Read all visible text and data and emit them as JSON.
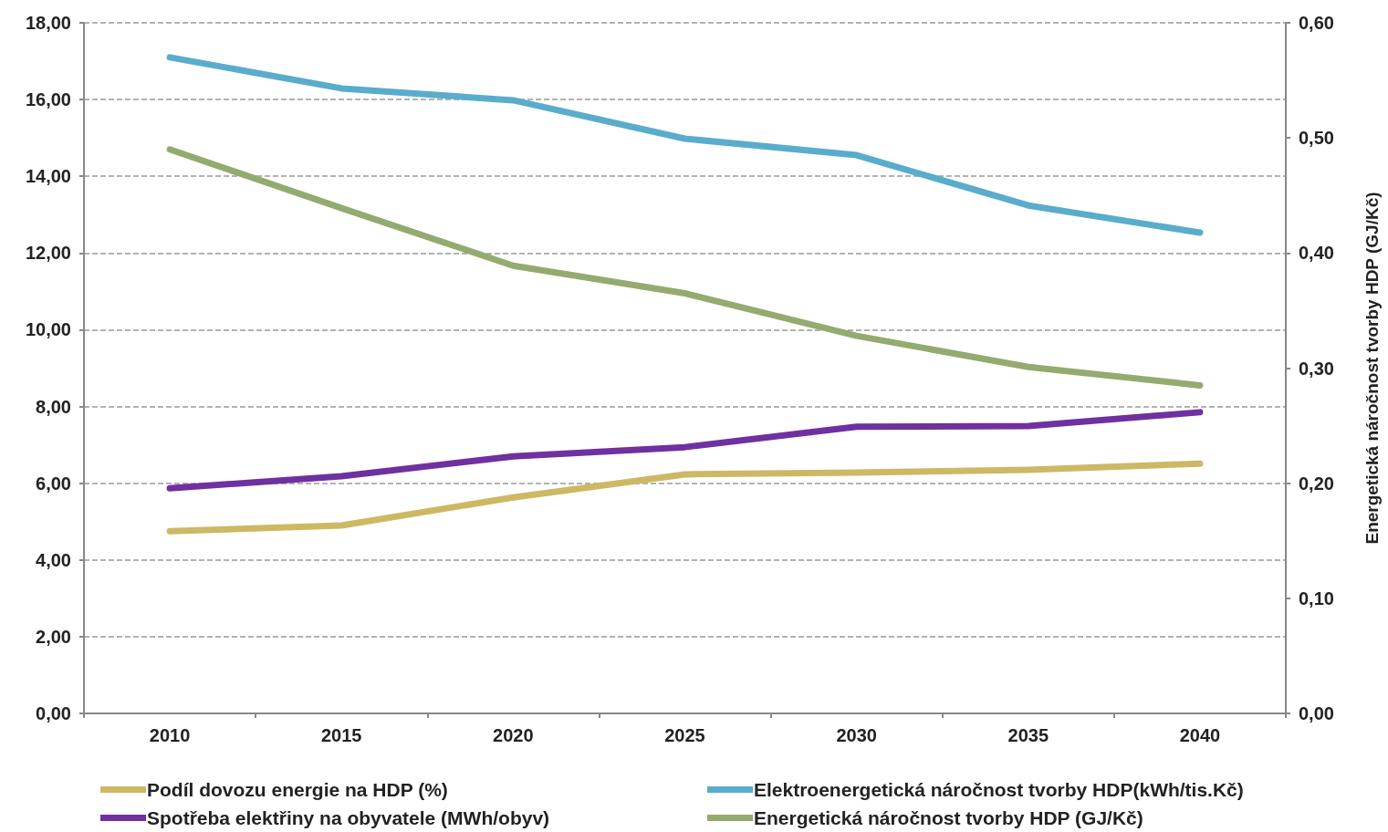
{
  "chart_data": {
    "type": "line",
    "y2label": "Energetická náročnost tvorby HDP (GJ/Kč)",
    "categories": [
      "2010",
      "2015",
      "2020",
      "2025",
      "2030",
      "2035",
      "2040"
    ],
    "series": [
      {
        "name": "Podíl dovozu energie na HDP (%)",
        "color": "#cdb864",
        "values": [
          4.75,
          4.9,
          5.63,
          6.23,
          6.28,
          6.35,
          6.51
        ]
      },
      {
        "name": "Elektroenergetická náročnost tvorby HDP(kWh/tis.Kč)",
        "color": "#5aaccc",
        "values": [
          17.1,
          16.29,
          15.98,
          14.98,
          14.55,
          13.24,
          12.53
        ]
      },
      {
        "name": "Spotřeba elektřiny na obyvatele (MWh/obyv)",
        "color": "#7030a0",
        "values": [
          5.87,
          6.18,
          6.7,
          6.94,
          7.47,
          7.49,
          7.85
        ]
      },
      {
        "name": "Energetická náročnost tvorby HDP (GJ/Kč)",
        "color": "#93ab6f",
        "axis": "y2",
        "values": [
          0.49,
          0.439,
          0.389,
          0.365,
          0.328,
          0.301,
          0.285
        ]
      }
    ],
    "ylim": [
      0,
      18
    ],
    "yticks": [
      {
        "value": 0,
        "label": "0,00"
      },
      {
        "value": 2,
        "label": "2,00"
      },
      {
        "value": 4,
        "label": "4,00"
      },
      {
        "value": 6,
        "label": "6,00"
      },
      {
        "value": 8,
        "label": "8,00"
      },
      {
        "value": 10,
        "label": "10,00"
      },
      {
        "value": 12,
        "label": "12,00"
      },
      {
        "value": 14,
        "label": "14,00"
      },
      {
        "value": 16,
        "label": "16,00"
      },
      {
        "value": 18,
        "label": "18,00"
      }
    ],
    "y2lim": [
      0,
      0.6
    ],
    "y2ticks": [
      {
        "value": 0,
        "label": "0,00"
      },
      {
        "value": 0.1,
        "label": "0,10"
      },
      {
        "value": 0.2,
        "label": "0,20"
      },
      {
        "value": 0.3,
        "label": "0,30"
      },
      {
        "value": 0.4,
        "label": "0,40"
      },
      {
        "value": 0.5,
        "label": "0,50"
      },
      {
        "value": 0.6,
        "label": "0,60"
      }
    ],
    "grid": "y",
    "legend": "bottom",
    "marker": "none",
    "line_style": "solid"
  }
}
